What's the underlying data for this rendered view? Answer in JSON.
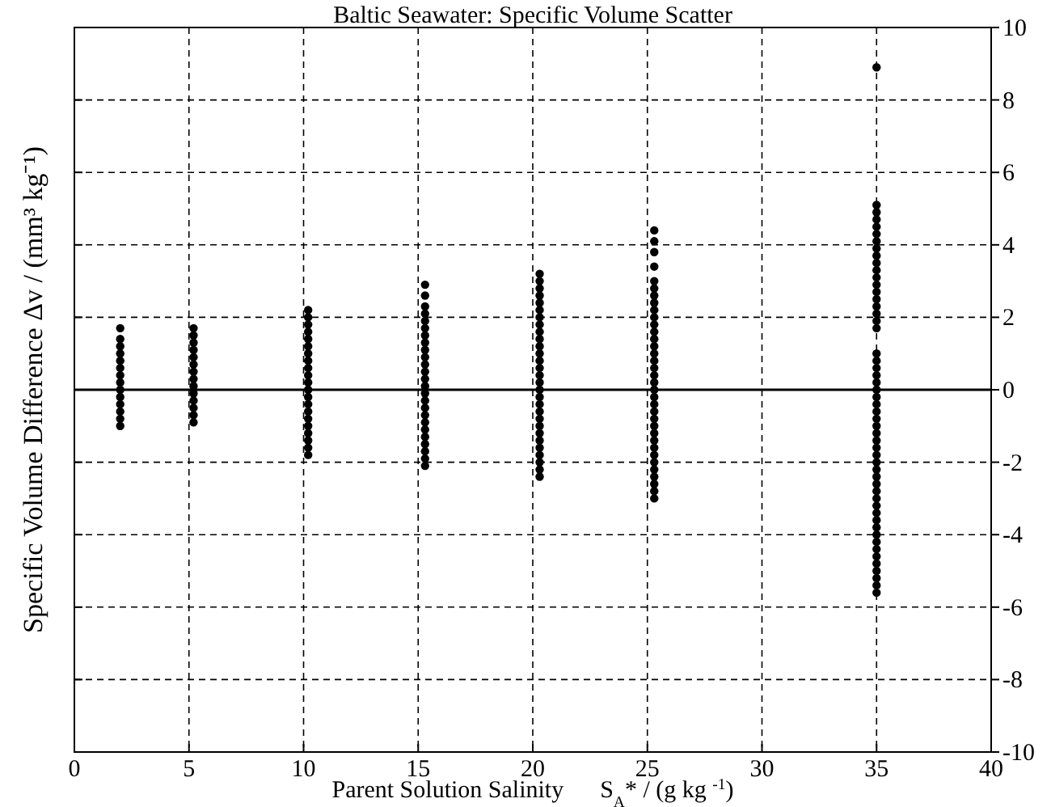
{
  "chart_data": {
    "type": "scatter",
    "title": "Baltic Seawater: Specific Volume Scatter",
    "xlabel": "Parent Solution Salinity      S$_{A}$* / (g kg $^{-1}$)",
    "ylabel": "Specific Volume Difference Δv / (mm³ kg⁻¹)",
    "xlim": [
      0,
      40
    ],
    "xticks": [
      0,
      5,
      10,
      15,
      20,
      25,
      30,
      35,
      40
    ],
    "ylim": [
      -10,
      10
    ],
    "yticks": [
      -10,
      -8,
      -6,
      -4,
      -2,
      0,
      2,
      4,
      6,
      8,
      10
    ],
    "grid": true,
    "marker": "circle",
    "ref_lines": [
      {
        "axis": "y",
        "value": 0,
        "color": "#000000",
        "line_style": "solid"
      }
    ],
    "series": [
      {
        "color": "#000000",
        "x": [
          2,
          2,
          2,
          2,
          2,
          2,
          2,
          2,
          2,
          2,
          2,
          2,
          2,
          2,
          5.2,
          5.2,
          5.2,
          5.2,
          5.2,
          5.2,
          5.2,
          5.2,
          5.2,
          5.2,
          5.2,
          5.2,
          5.2,
          5.2,
          10.2,
          10.2,
          10.2,
          10.2,
          10.2,
          10.2,
          10.2,
          10.2,
          10.2,
          10.2,
          10.2,
          10.2,
          10.2,
          10.2,
          10.2,
          10.2,
          10.2,
          10.2,
          10.2,
          10.2,
          10.2,
          15.3,
          15.3,
          15.3,
          15.3,
          15.3,
          15.3,
          15.3,
          15.3,
          15.3,
          15.3,
          15.3,
          15.3,
          15.3,
          15.3,
          15.3,
          15.3,
          15.3,
          15.3,
          15.3,
          15.3,
          15.3,
          15.3,
          15.3,
          15.3,
          15.3,
          20.3,
          20.3,
          20.3,
          20.3,
          20.3,
          20.3,
          20.3,
          20.3,
          20.3,
          20.3,
          20.3,
          20.3,
          20.3,
          20.3,
          20.3,
          20.3,
          20.3,
          20.3,
          20.3,
          20.3,
          20.3,
          20.3,
          20.3,
          20.3,
          20.3,
          20.3,
          20.3,
          20.3,
          20.3,
          25.3,
          25.3,
          25.3,
          25.3,
          25.3,
          25.3,
          25.3,
          25.3,
          25.3,
          25.3,
          25.3,
          25.3,
          25.3,
          25.3,
          25.3,
          25.3,
          25.3,
          25.3,
          25.3,
          25.3,
          25.3,
          25.3,
          25.3,
          25.3,
          25.3,
          25.3,
          25.3,
          25.3,
          25.3,
          25.3,
          25.3,
          25.3,
          25.3,
          25.3,
          25.3,
          35,
          35,
          35,
          35,
          35,
          35,
          35,
          35,
          35,
          35,
          35,
          35,
          35,
          35,
          35,
          35,
          35,
          35,
          35,
          35,
          35,
          35,
          35,
          35,
          35,
          35,
          35,
          35,
          35,
          35,
          35,
          35,
          35,
          35,
          35,
          35,
          35,
          35,
          35,
          35,
          35,
          35,
          35,
          35,
          35,
          35,
          35,
          35,
          35,
          35,
          35,
          35,
          35
        ],
        "values": [
          -1.0,
          -0.8,
          -0.6,
          -0.4,
          -0.2,
          0,
          0.2,
          0.4,
          0.6,
          0.8,
          1.0,
          1.2,
          1.4,
          1.7,
          -0.9,
          -0.7,
          -0.5,
          -0.3,
          -0.1,
          0.1,
          0.3,
          0.5,
          0.7,
          0.9,
          1.1,
          1.3,
          1.5,
          1.7,
          -1.8,
          -1.6,
          -1.4,
          -1.2,
          -1.0,
          -0.8,
          -0.6,
          -0.4,
          -0.2,
          0,
          0.2,
          0.4,
          0.6,
          0.8,
          1.0,
          1.2,
          1.4,
          1.6,
          1.8,
          2.0,
          2.2,
          -2.1,
          -1.9,
          -1.7,
          -1.5,
          -1.3,
          -1.1,
          -0.9,
          -0.7,
          -0.5,
          -0.3,
          -0.1,
          0.1,
          0.3,
          0.5,
          0.7,
          0.9,
          1.1,
          1.3,
          1.5,
          1.7,
          1.9,
          2.1,
          2.3,
          2.6,
          2.9,
          -2.4,
          -2.2,
          -2.0,
          -1.8,
          -1.6,
          -1.4,
          -1.2,
          -1.0,
          -0.8,
          -0.6,
          -0.4,
          -0.2,
          0,
          0.2,
          0.4,
          0.6,
          0.8,
          1.0,
          1.2,
          1.4,
          1.6,
          1.8,
          2.0,
          2.2,
          2.4,
          2.6,
          2.8,
          3.0,
          3.2,
          -3.0,
          -2.8,
          -2.6,
          -2.4,
          -2.2,
          -2.0,
          -1.8,
          -1.6,
          -1.4,
          -1.2,
          -1.0,
          -0.8,
          -0.6,
          -0.4,
          -0.2,
          0,
          0.2,
          0.4,
          0.6,
          0.8,
          1.0,
          1.2,
          1.4,
          1.6,
          1.8,
          2.0,
          2.2,
          2.4,
          2.6,
          2.8,
          3.0,
          3.4,
          3.8,
          4.1,
          4.4,
          -5.6,
          -5.4,
          -5.2,
          -5.0,
          -4.8,
          -4.6,
          -4.4,
          -4.2,
          -4.0,
          -3.8,
          -3.6,
          -3.4,
          -3.2,
          -3.0,
          -2.8,
          -2.6,
          -2.4,
          -2.2,
          -2.0,
          -1.8,
          -1.6,
          -1.4,
          -1.2,
          -1.0,
          -0.8,
          -0.6,
          -0.4,
          -0.2,
          0,
          0.2,
          0.4,
          0.6,
          0.8,
          1.0,
          1.7,
          1.9,
          2.1,
          2.3,
          2.5,
          2.7,
          2.9,
          3.1,
          3.3,
          3.5,
          3.7,
          3.9,
          4.1,
          4.3,
          4.5,
          4.7,
          4.9,
          5.1,
          8.9
        ]
      }
    ]
  }
}
